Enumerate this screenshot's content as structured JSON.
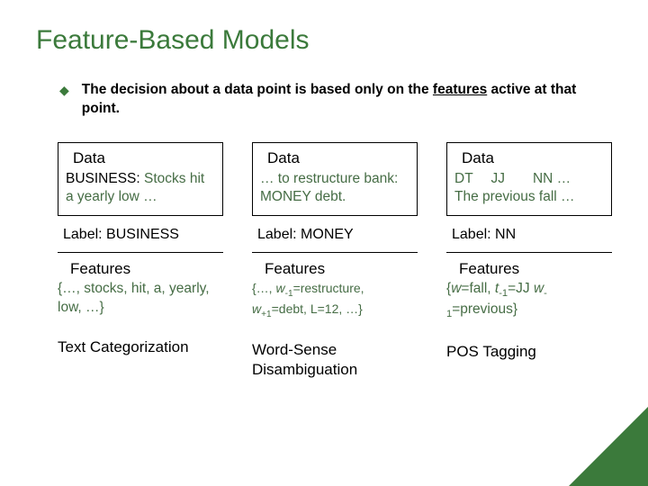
{
  "title": "Feature-Based Models",
  "bullet_prefix": "The decision about a data point is based only on the ",
  "bullet_underlined": "features",
  "bullet_suffix": " active at that point.",
  "colors": {
    "accent": "#3b7a3b",
    "greenish_text": "#466d45",
    "background": "#ffffff",
    "border": "#000000"
  },
  "columns": [
    {
      "data_title": "Data",
      "data_line1": "BUSINESS: ",
      "data_line1_green": "Stocks hit a yearly low …",
      "label": "Label: BUSINESS",
      "feat_title": "Features",
      "feat_body": "{…, stocks, hit, a, yearly, low, …}",
      "task": "Text Categorization"
    },
    {
      "data_title": "Data",
      "data_body": "… to restructure bank: MONEY debt.",
      "label": "Label: MONEY",
      "feat_title": "Features",
      "feat_body_html": "{…, <span class=\"italic\">w</span><span class=\"sub\">-1</span>=restructure, <span class=\"italic\">w</span><span class=\"sub\">+1</span>=debt, L=12, …}",
      "task": "Word-Sense Disambiguation"
    },
    {
      "data_title": "Data",
      "data_line1": " DT  JJ  NN …",
      "data_line2": "The previous fall …",
      "label": "Label: NN",
      "feat_title": "Features",
      "feat_body_html": "{<span class=\"italic\">w</span>=fall, <span class=\"italic\">t</span><span class=\"sub\">-1</span>=JJ <span class=\"italic\">w</span><span class=\"sub\">-1</span>=previous}",
      "task": "POS Tagging"
    }
  ]
}
